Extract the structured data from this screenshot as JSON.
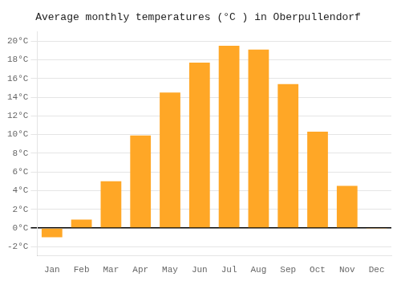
{
  "chart_data": {
    "type": "bar",
    "title": "Average monthly temperatures (°C ) in Oberpullendorf",
    "categories": [
      "Jan",
      "Feb",
      "Mar",
      "Apr",
      "May",
      "Jun",
      "Jul",
      "Aug",
      "Sep",
      "Oct",
      "Nov",
      "Dec"
    ],
    "values": [
      -1.0,
      0.9,
      5.0,
      9.9,
      14.5,
      17.7,
      19.5,
      19.1,
      15.4,
      10.3,
      4.5,
      -0.1
    ],
    "color": "#FFA726",
    "ylim": [
      -3,
      21
    ],
    "yticks": [
      {
        "value": -2,
        "label": "-2°C"
      },
      {
        "value": 0,
        "label": "0°C"
      },
      {
        "value": 2,
        "label": "2°C"
      },
      {
        "value": 4,
        "label": "4°C"
      },
      {
        "value": 6,
        "label": "6°C"
      },
      {
        "value": 8,
        "label": "8°C"
      },
      {
        "value": 10,
        "label": "10°C"
      },
      {
        "value": 12,
        "label": "12°C"
      },
      {
        "value": 14,
        "label": "14°C"
      },
      {
        "value": 16,
        "label": "16°C"
      },
      {
        "value": 18,
        "label": "18°C"
      },
      {
        "value": 20,
        "label": "20°C"
      }
    ],
    "grid": true
  }
}
